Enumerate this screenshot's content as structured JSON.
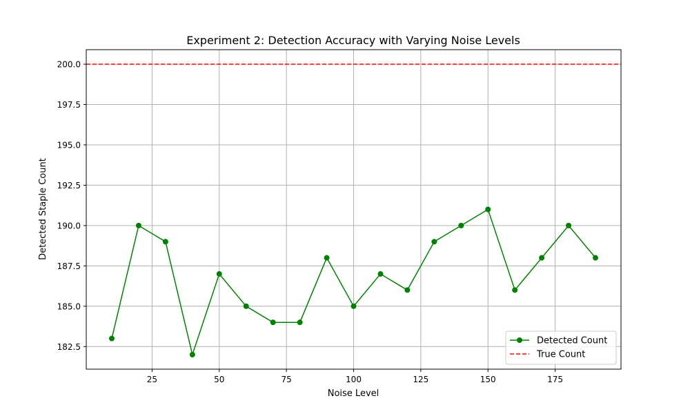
{
  "chart_data": {
    "type": "line",
    "title": "Experiment 2: Detection Accuracy with Varying Noise Levels",
    "xlabel": "Noise Level",
    "ylabel": "Detected Staple Count",
    "xlim": [
      0.5,
      199.5
    ],
    "ylim": [
      181.1,
      200.9
    ],
    "x_ticks": [
      25,
      50,
      75,
      100,
      125,
      150,
      175
    ],
    "y_ticks": [
      182.5,
      185.0,
      187.5,
      190.0,
      192.5,
      195.0,
      197.5,
      200.0
    ],
    "y_tick_labels": [
      "182.5",
      "185.0",
      "187.5",
      "190.0",
      "192.5",
      "195.0",
      "197.5",
      "200.0"
    ],
    "grid": true,
    "legend_position": "lower-right",
    "series": [
      {
        "name": "Detected Count",
        "color": "#008000",
        "style": "solid-with-circle-markers",
        "x": [
          10,
          20,
          30,
          40,
          50,
          60,
          70,
          80,
          90,
          100,
          110,
          120,
          130,
          140,
          150,
          160,
          170,
          180,
          190
        ],
        "y": [
          183,
          190,
          189,
          182,
          187,
          185,
          184,
          184,
          188,
          185,
          187,
          186,
          189,
          190,
          191,
          186,
          188,
          190,
          188
        ]
      }
    ],
    "reference_lines": [
      {
        "name": "True Count",
        "orientation": "horizontal",
        "value": 200,
        "color": "#ff0000",
        "style": "dashed"
      }
    ]
  }
}
